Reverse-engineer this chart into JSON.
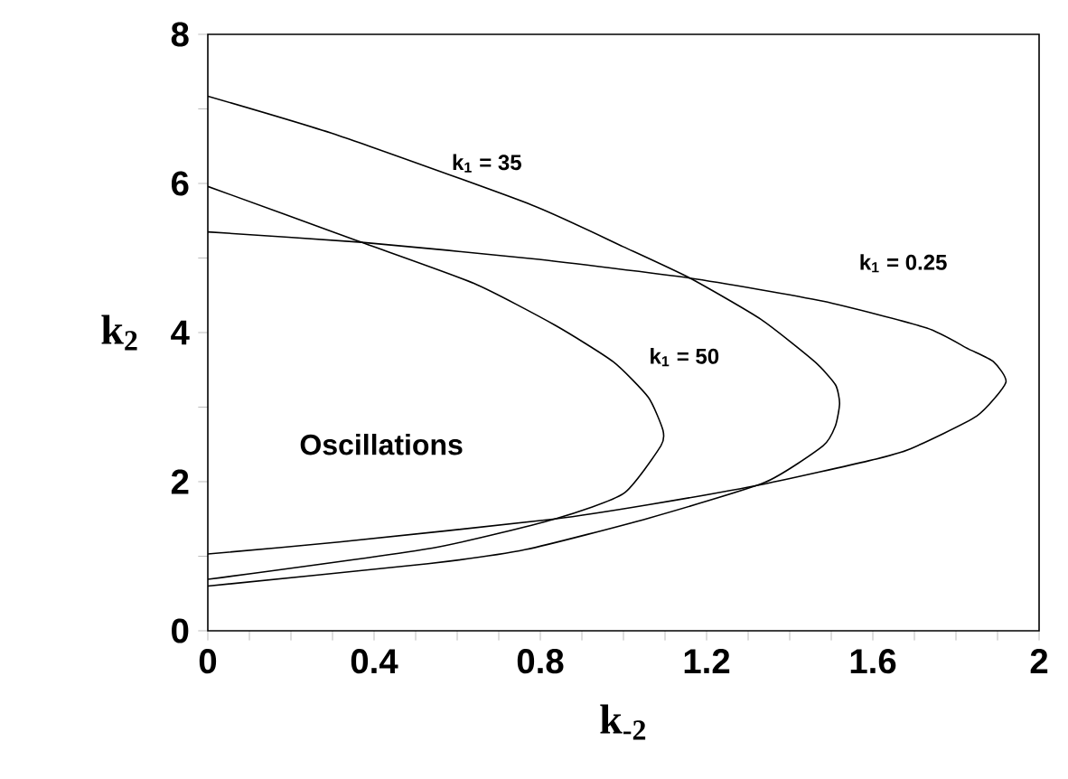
{
  "chart_data": {
    "type": "line",
    "xlabel": "k$_{-2}$",
    "ylabel": "k$_{2}$",
    "annotations": [
      "Oscillations"
    ],
    "xlim": [
      0,
      2
    ],
    "ylim": [
      0,
      8
    ],
    "xticks": [
      0,
      {
        "value": 0.1,
        "label": null
      },
      {
        "value": 0.2,
        "label": null
      },
      {
        "value": 0.3,
        "label": null
      },
      0.4,
      {
        "value": 0.5,
        "label": null
      },
      {
        "value": 0.6,
        "label": null
      },
      {
        "value": 0.7,
        "label": null
      },
      0.8,
      {
        "value": 0.9,
        "label": null
      },
      {
        "value": 1.0,
        "label": null
      },
      {
        "value": 1.1,
        "label": null
      },
      1.2,
      {
        "value": 1.3,
        "label": null
      },
      {
        "value": 1.4,
        "label": null
      },
      {
        "value": 1.5,
        "label": null
      },
      1.6,
      {
        "value": 1.7,
        "label": null
      },
      {
        "value": 1.8,
        "label": null
      },
      {
        "value": 1.9,
        "label": null
      },
      2
    ],
    "yticks": [
      0,
      {
        "value": 1,
        "label": null
      },
      2,
      {
        "value": 3,
        "label": null
      },
      4,
      {
        "value": 5,
        "label": null
      },
      6,
      {
        "value": 7,
        "label": null
      },
      8
    ],
    "grid": false,
    "legend": false,
    "marker": "none",
    "line_style": "solid",
    "series": [
      {
        "name": "k$_{1}$ = 35",
        "color": "#000000",
        "x": [
          0,
          0.316,
          0.78,
          1.0,
          1.16,
          1.33,
          1.46,
          1.51,
          1.52,
          1.51,
          1.48,
          1.34,
          1.06,
          0.765,
          0.53,
          0
        ],
        "values": [
          7.17,
          6.64,
          5.71,
          5.15,
          4.73,
          4.18,
          3.61,
          3.3,
          3.05,
          2.75,
          2.48,
          1.99,
          1.51,
          1.09,
          0.9,
          0.6
        ]
      },
      {
        "name": "k$_{1}$ = 0.25",
        "color": "#000000",
        "x": [
          0,
          0.37,
          0.78,
          1.16,
          1.48,
          1.73,
          1.83,
          1.89,
          1.92,
          1.85,
          1.69,
          1.59,
          1.34,
          1.06,
          0.835,
          0.316,
          0
        ],
        "values": [
          5.35,
          5.21,
          4.99,
          4.73,
          4.42,
          4.06,
          3.78,
          3.61,
          3.33,
          2.88,
          2.44,
          2.28,
          1.97,
          1.69,
          1.5,
          1.19,
          1.03
        ]
      },
      {
        "name": "k$_{1}$ = 50",
        "color": "#000000",
        "x": [
          0,
          0.36,
          0.64,
          0.835,
          0.975,
          1.06,
          1.095,
          1.09,
          1.0,
          0.835,
          0.54,
          0
        ],
        "values": [
          5.96,
          5.23,
          4.66,
          4.1,
          3.61,
          3.13,
          2.69,
          2.48,
          1.84,
          1.5,
          1.11,
          0.69
        ]
      }
    ]
  }
}
